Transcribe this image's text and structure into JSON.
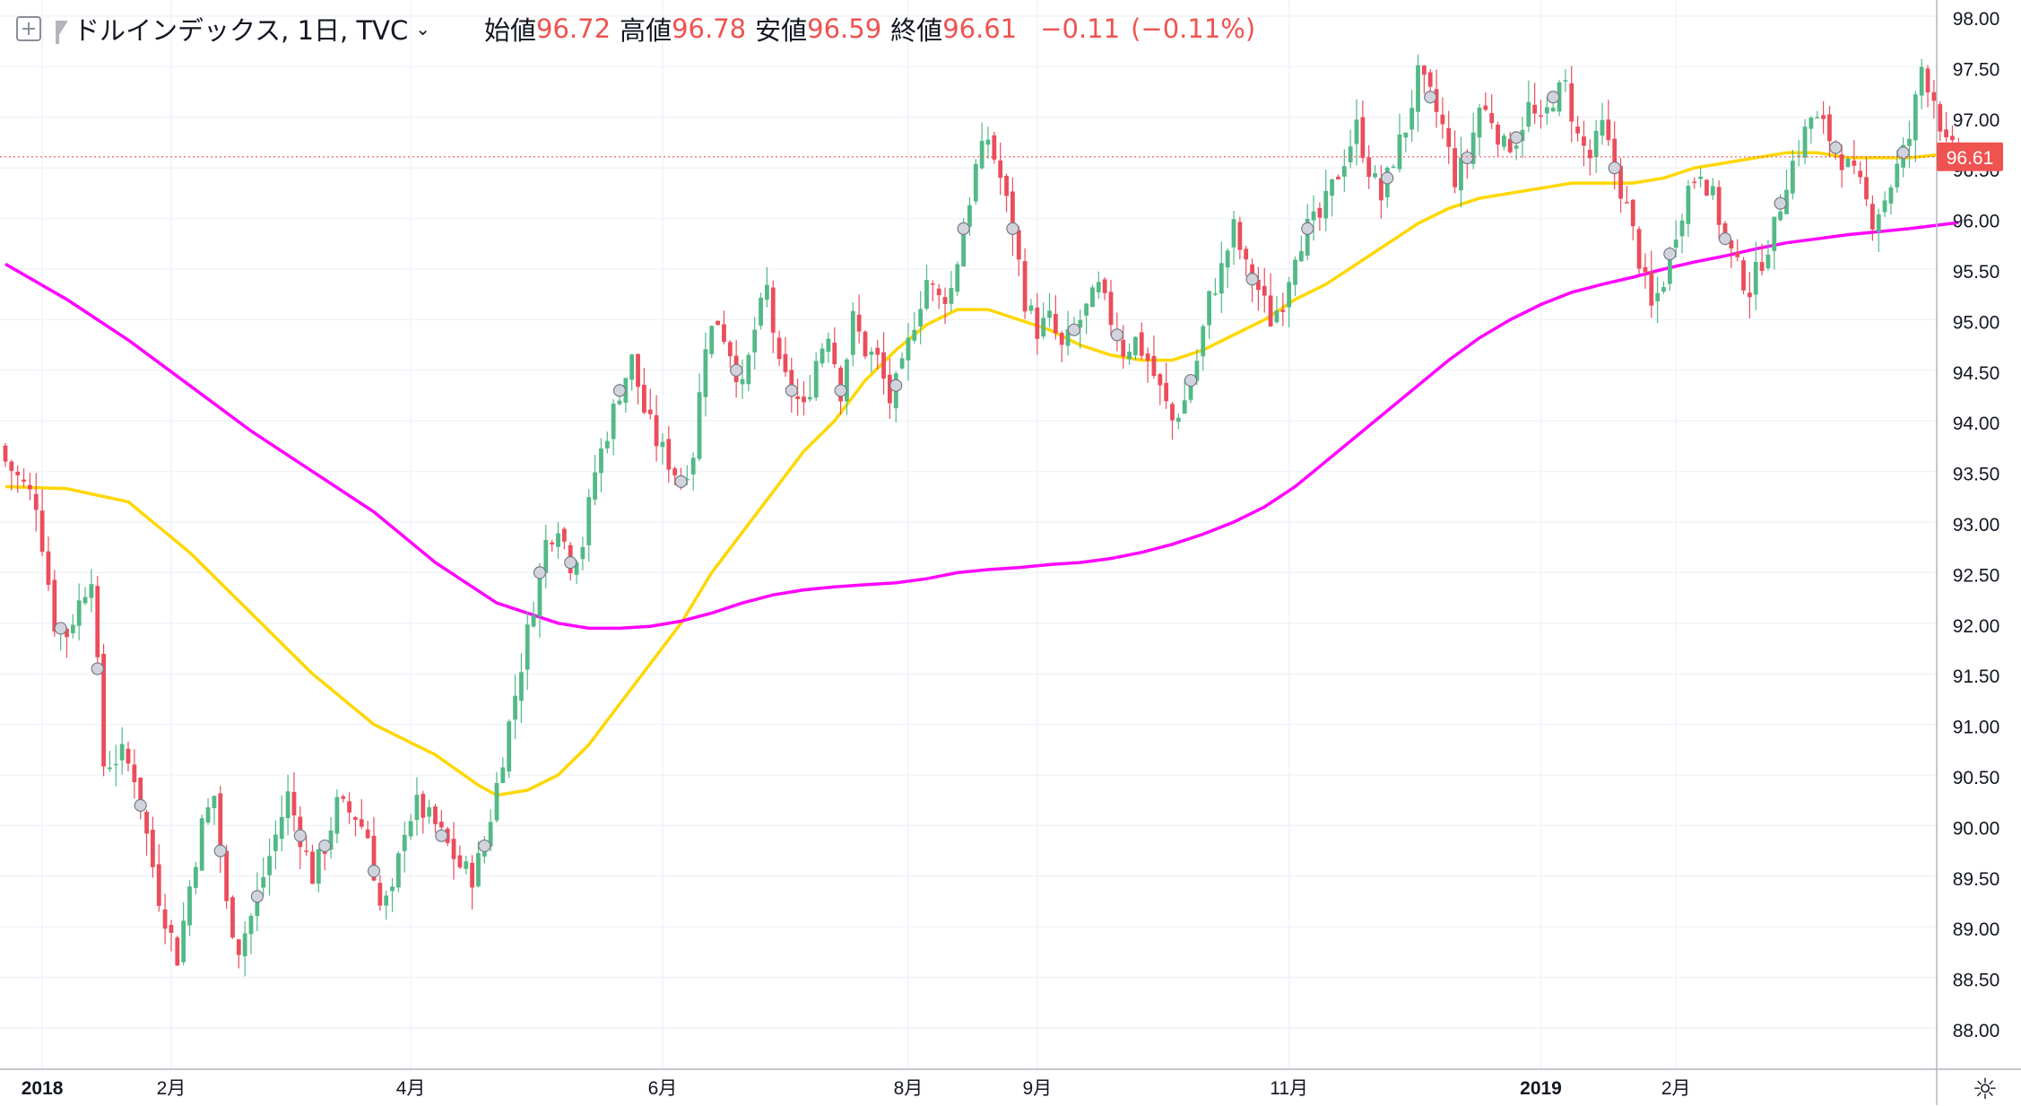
{
  "legend": {
    "symbol": "ドルインデックス, 1日, TVC",
    "open_label": "始値",
    "open": "96.72",
    "high_label": "高値",
    "high": "96.78",
    "low_label": "安値",
    "low": "96.59",
    "close_label": "終値",
    "close": "96.61",
    "change": "−0.11",
    "change_pct": "(−0.11%)"
  },
  "colors": {
    "up": "#53b987",
    "down": "#eb4d5c",
    "ma_short": "#ffd700",
    "ma_long": "#ff00ff",
    "price_line": "#ef5350",
    "grid": "#f0f3fa"
  },
  "icons": {
    "add": "plus-square-icon",
    "flag": "flag-icon",
    "caret": "chevron-down-icon",
    "settings": "gear-icon"
  },
  "chart_data": {
    "type": "candlestick",
    "title": "ドルインデックス, 1日, TVC",
    "ylim": [
      87.7,
      98.2
    ],
    "y_ticks": [
      "98.00",
      "97.50",
      "97.00",
      "96.50",
      "96.00",
      "95.50",
      "95.00",
      "94.50",
      "94.00",
      "93.50",
      "93.00",
      "92.50",
      "92.00",
      "91.50",
      "91.00",
      "90.50",
      "90.00",
      "89.50",
      "89.00",
      "88.50",
      "88.00"
    ],
    "x_ticks": [
      {
        "label": "2018",
        "bar": 6
      },
      {
        "label": "2月",
        "bar": 27
      },
      {
        "label": "4月",
        "bar": 66
      },
      {
        "label": "6月",
        "bar": 107
      },
      {
        "label": "8月",
        "bar": 147
      },
      {
        "label": "9月",
        "bar": 168
      },
      {
        "label": "11月",
        "bar": 209
      },
      {
        "label": "2019",
        "bar": 250
      },
      {
        "label": "2月",
        "bar": 272
      }
    ],
    "last_price": "96.61",
    "close_path": [
      [
        0,
        93.6
      ],
      [
        5,
        93.2
      ],
      [
        8,
        92.0
      ],
      [
        10,
        91.9
      ],
      [
        12,
        92.2
      ],
      [
        14,
        92.5
      ],
      [
        16,
        90.6
      ],
      [
        19,
        90.7
      ],
      [
        21,
        90.5
      ],
      [
        23,
        89.9
      ],
      [
        25,
        89.3
      ],
      [
        28,
        88.7
      ],
      [
        30,
        89.4
      ],
      [
        32,
        90.0
      ],
      [
        34,
        90.3
      ],
      [
        36,
        89.2
      ],
      [
        38,
        88.8
      ],
      [
        40,
        89.1
      ],
      [
        43,
        89.7
      ],
      [
        46,
        90.3
      ],
      [
        48,
        89.9
      ],
      [
        50,
        89.5
      ],
      [
        52,
        89.8
      ],
      [
        54,
        90.2
      ],
      [
        57,
        90.1
      ],
      [
        59,
        89.9
      ],
      [
        61,
        89.2
      ],
      [
        63,
        89.3
      ],
      [
        65,
        90.0
      ],
      [
        67,
        90.2
      ],
      [
        70,
        90.0
      ],
      [
        72,
        89.8
      ],
      [
        74,
        89.6
      ],
      [
        76,
        89.5
      ],
      [
        78,
        89.8
      ],
      [
        80,
        90.4
      ],
      [
        82,
        91.0
      ],
      [
        84,
        91.6
      ],
      [
        86,
        92.2
      ],
      [
        88,
        92.8
      ],
      [
        90,
        93.0
      ],
      [
        92,
        92.6
      ],
      [
        94,
        92.8
      ],
      [
        96,
        93.5
      ],
      [
        98,
        93.9
      ],
      [
        100,
        94.3
      ],
      [
        102,
        94.6
      ],
      [
        104,
        94.1
      ],
      [
        106,
        93.8
      ],
      [
        108,
        93.6
      ],
      [
        110,
        93.4
      ],
      [
        112,
        93.7
      ],
      [
        114,
        94.8
      ],
      [
        116,
        95.0
      ],
      [
        118,
        94.7
      ],
      [
        120,
        94.3
      ],
      [
        122,
        94.9
      ],
      [
        124,
        95.3
      ],
      [
        126,
        94.5
      ],
      [
        128,
        94.3
      ],
      [
        130,
        94.1
      ],
      [
        132,
        94.6
      ],
      [
        134,
        94.9
      ],
      [
        136,
        94.3
      ],
      [
        138,
        95.0
      ],
      [
        140,
        94.7
      ],
      [
        142,
        94.6
      ],
      [
        144,
        94.2
      ],
      [
        146,
        94.5
      ],
      [
        148,
        95.0
      ],
      [
        150,
        95.4
      ],
      [
        152,
        95.2
      ],
      [
        154,
        95.3
      ],
      [
        156,
        95.9
      ],
      [
        158,
        96.5
      ],
      [
        160,
        96.8
      ],
      [
        162,
        96.4
      ],
      [
        164,
        95.9
      ],
      [
        166,
        95.2
      ],
      [
        168,
        94.9
      ],
      [
        170,
        95.0
      ],
      [
        172,
        94.7
      ],
      [
        174,
        94.9
      ],
      [
        176,
        95.1
      ],
      [
        178,
        95.3
      ],
      [
        180,
        95.0
      ],
      [
        182,
        94.7
      ],
      [
        184,
        94.8
      ],
      [
        186,
        94.6
      ],
      [
        188,
        94.3
      ],
      [
        190,
        94.0
      ],
      [
        192,
        94.2
      ],
      [
        194,
        94.6
      ],
      [
        196,
        95.2
      ],
      [
        198,
        95.5
      ],
      [
        200,
        95.9
      ],
      [
        202,
        95.5
      ],
      [
        204,
        95.3
      ],
      [
        206,
        95.0
      ],
      [
        208,
        95.2
      ],
      [
        210,
        95.7
      ],
      [
        212,
        95.9
      ],
      [
        214,
        96.0
      ],
      [
        216,
        96.3
      ],
      [
        218,
        96.6
      ],
      [
        220,
        96.9
      ],
      [
        222,
        96.5
      ],
      [
        224,
        96.2
      ],
      [
        226,
        96.6
      ],
      [
        228,
        96.9
      ],
      [
        230,
        97.4
      ],
      [
        232,
        97.2
      ],
      [
        234,
        96.9
      ],
      [
        236,
        96.4
      ],
      [
        238,
        96.6
      ],
      [
        240,
        97.1
      ],
      [
        242,
        97.0
      ],
      [
        244,
        96.7
      ],
      [
        246,
        96.8
      ],
      [
        248,
        97.1
      ],
      [
        250,
        96.9
      ],
      [
        252,
        97.2
      ],
      [
        254,
        97.3
      ],
      [
        256,
        96.8
      ],
      [
        258,
        96.6
      ],
      [
        260,
        96.9
      ],
      [
        262,
        96.5
      ],
      [
        264,
        96.1
      ],
      [
        266,
        95.6
      ],
      [
        268,
        95.1
      ],
      [
        270,
        95.4
      ],
      [
        272,
        95.9
      ],
      [
        274,
        96.3
      ],
      [
        276,
        96.5
      ],
      [
        278,
        96.2
      ],
      [
        280,
        95.8
      ],
      [
        282,
        95.5
      ],
      [
        284,
        95.3
      ],
      [
        286,
        95.6
      ],
      [
        288,
        95.9
      ],
      [
        290,
        96.4
      ],
      [
        292,
        96.7
      ],
      [
        294,
        97.0
      ],
      [
        296,
        96.9
      ],
      [
        298,
        96.7
      ],
      [
        300,
        96.5
      ],
      [
        302,
        96.3
      ],
      [
        304,
        96.0
      ],
      [
        306,
        96.2
      ],
      [
        308,
        96.5
      ],
      [
        310,
        96.8
      ],
      [
        312,
        97.5
      ],
      [
        314,
        97.2
      ],
      [
        316,
        96.7
      ],
      [
        318,
        96.61
      ]
    ],
    "series": [
      {
        "type": "ma",
        "color": "#ffd700",
        "points": [
          [
            0,
            93.35
          ],
          [
            10,
            93.33
          ],
          [
            20,
            93.2
          ],
          [
            30,
            92.7
          ],
          [
            40,
            92.1
          ],
          [
            50,
            91.5
          ],
          [
            60,
            91.0
          ],
          [
            70,
            90.7
          ],
          [
            77,
            90.4
          ],
          [
            80,
            90.3
          ],
          [
            85,
            90.35
          ],
          [
            90,
            90.5
          ],
          [
            95,
            90.8
          ],
          [
            100,
            91.2
          ],
          [
            105,
            91.6
          ],
          [
            110,
            92.0
          ],
          [
            115,
            92.5
          ],
          [
            120,
            92.9
          ],
          [
            125,
            93.3
          ],
          [
            130,
            93.7
          ],
          [
            135,
            94.0
          ],
          [
            140,
            94.4
          ],
          [
            145,
            94.7
          ],
          [
            150,
            94.95
          ],
          [
            155,
            95.1
          ],
          [
            160,
            95.1
          ],
          [
            165,
            95.0
          ],
          [
            170,
            94.9
          ],
          [
            175,
            94.75
          ],
          [
            180,
            94.65
          ],
          [
            185,
            94.6
          ],
          [
            190,
            94.6
          ],
          [
            195,
            94.7
          ],
          [
            200,
            94.85
          ],
          [
            205,
            95.0
          ],
          [
            210,
            95.2
          ],
          [
            215,
            95.35
          ],
          [
            220,
            95.55
          ],
          [
            225,
            95.75
          ],
          [
            230,
            95.95
          ],
          [
            235,
            96.1
          ],
          [
            240,
            96.2
          ],
          [
            245,
            96.25
          ],
          [
            250,
            96.3
          ],
          [
            255,
            96.35
          ],
          [
            260,
            96.35
          ],
          [
            265,
            96.35
          ],
          [
            270,
            96.4
          ],
          [
            275,
            96.5
          ],
          [
            280,
            96.55
          ],
          [
            285,
            96.6
          ],
          [
            290,
            96.65
          ],
          [
            295,
            96.65
          ],
          [
            300,
            96.6
          ],
          [
            305,
            96.6
          ],
          [
            310,
            96.6
          ],
          [
            318,
            96.65
          ]
        ]
      },
      {
        "type": "ma",
        "color": "#ff00ff",
        "points": [
          [
            0,
            95.55
          ],
          [
            10,
            95.2
          ],
          [
            20,
            94.8
          ],
          [
            30,
            94.35
          ],
          [
            40,
            93.9
          ],
          [
            50,
            93.5
          ],
          [
            60,
            93.1
          ],
          [
            70,
            92.6
          ],
          [
            80,
            92.2
          ],
          [
            90,
            92.0
          ],
          [
            95,
            91.95
          ],
          [
            100,
            91.95
          ],
          [
            105,
            91.97
          ],
          [
            110,
            92.02
          ],
          [
            115,
            92.1
          ],
          [
            120,
            92.2
          ],
          [
            125,
            92.28
          ],
          [
            130,
            92.33
          ],
          [
            135,
            92.36
          ],
          [
            140,
            92.38
          ],
          [
            145,
            92.4
          ],
          [
            150,
            92.44
          ],
          [
            155,
            92.5
          ],
          [
            160,
            92.53
          ],
          [
            165,
            92.55
          ],
          [
            170,
            92.58
          ],
          [
            175,
            92.6
          ],
          [
            180,
            92.64
          ],
          [
            185,
            92.7
          ],
          [
            190,
            92.78
          ],
          [
            195,
            92.88
          ],
          [
            200,
            93.0
          ],
          [
            205,
            93.15
          ],
          [
            210,
            93.35
          ],
          [
            215,
            93.6
          ],
          [
            220,
            93.85
          ],
          [
            225,
            94.1
          ],
          [
            230,
            94.35
          ],
          [
            235,
            94.6
          ],
          [
            240,
            94.82
          ],
          [
            245,
            95.0
          ],
          [
            250,
            95.15
          ],
          [
            255,
            95.27
          ],
          [
            260,
            95.35
          ],
          [
            265,
            95.42
          ],
          [
            270,
            95.5
          ],
          [
            275,
            95.57
          ],
          [
            280,
            95.63
          ],
          [
            285,
            95.7
          ],
          [
            290,
            95.76
          ],
          [
            295,
            95.8
          ],
          [
            300,
            95.84
          ],
          [
            305,
            95.87
          ],
          [
            310,
            95.9
          ],
          [
            318,
            95.96
          ]
        ]
      }
    ]
  }
}
